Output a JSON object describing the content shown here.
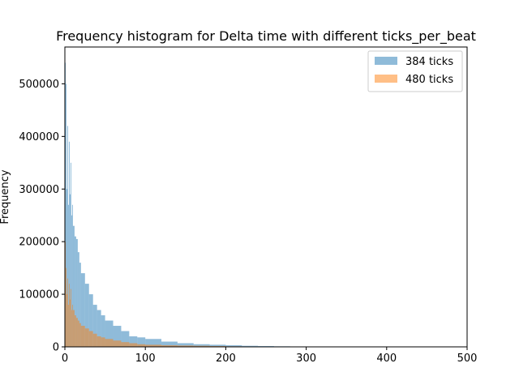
{
  "chart_data": {
    "type": "histogram",
    "title": "Frequency histogram for Delta time with different ticks_per_beat",
    "xlabel": "",
    "ylabel": "Frequency",
    "xlim": [
      0,
      500
    ],
    "ylim": [
      0,
      570000
    ],
    "x_ticks": [
      0,
      100,
      200,
      300,
      400,
      500
    ],
    "y_ticks": [
      0,
      100000,
      200000,
      300000,
      400000,
      500000
    ],
    "x_tick_labels": [
      "0",
      "100",
      "200",
      "300",
      "400",
      "500"
    ],
    "y_tick_labels": [
      "0",
      "100000",
      "200000",
      "300000",
      "400000",
      "500000"
    ],
    "grid": false,
    "legend_position": "top-right",
    "bin_width": 1,
    "series": [
      {
        "name": "384 ticks",
        "color": "#1f77b4",
        "opacity": 0.5,
        "x": [
          0,
          1,
          2,
          3,
          4,
          5,
          6,
          7,
          8,
          9,
          10,
          12,
          14,
          16,
          18,
          20,
          25,
          30,
          35,
          40,
          45,
          50,
          60,
          70,
          80,
          90,
          100,
          120,
          140,
          160,
          180,
          200,
          220,
          240,
          260,
          280
        ],
        "values": [
          540000,
          500000,
          300000,
          420000,
          270000,
          390000,
          290000,
          350000,
          250000,
          270000,
          230000,
          210000,
          205000,
          180000,
          160000,
          140000,
          120000,
          100000,
          80000,
          70000,
          60000,
          50000,
          40000,
          30000,
          20000,
          18000,
          15000,
          10000,
          7000,
          5000,
          4000,
          3000,
          2000,
          1500,
          1000,
          500
        ]
      },
      {
        "name": "480 ticks",
        "color": "#ff7f0e",
        "opacity": 0.5,
        "x": [
          0,
          1,
          2,
          3,
          4,
          5,
          6,
          7,
          8,
          9,
          10,
          12,
          14,
          16,
          18,
          20,
          25,
          30,
          35,
          40,
          45,
          50,
          60,
          70,
          80,
          90,
          100,
          120,
          140,
          160,
          180,
          200,
          220,
          240,
          260,
          280
        ],
        "values": [
          200000,
          150000,
          100000,
          130000,
          80000,
          120000,
          90000,
          110000,
          70000,
          80000,
          70000,
          60000,
          55000,
          50000,
          45000,
          40000,
          35000,
          30000,
          25000,
          20000,
          18000,
          15000,
          12000,
          9000,
          7000,
          5000,
          4000,
          3000,
          2500,
          2000,
          1500,
          1000,
          800,
          500,
          300,
          200
        ]
      }
    ]
  }
}
